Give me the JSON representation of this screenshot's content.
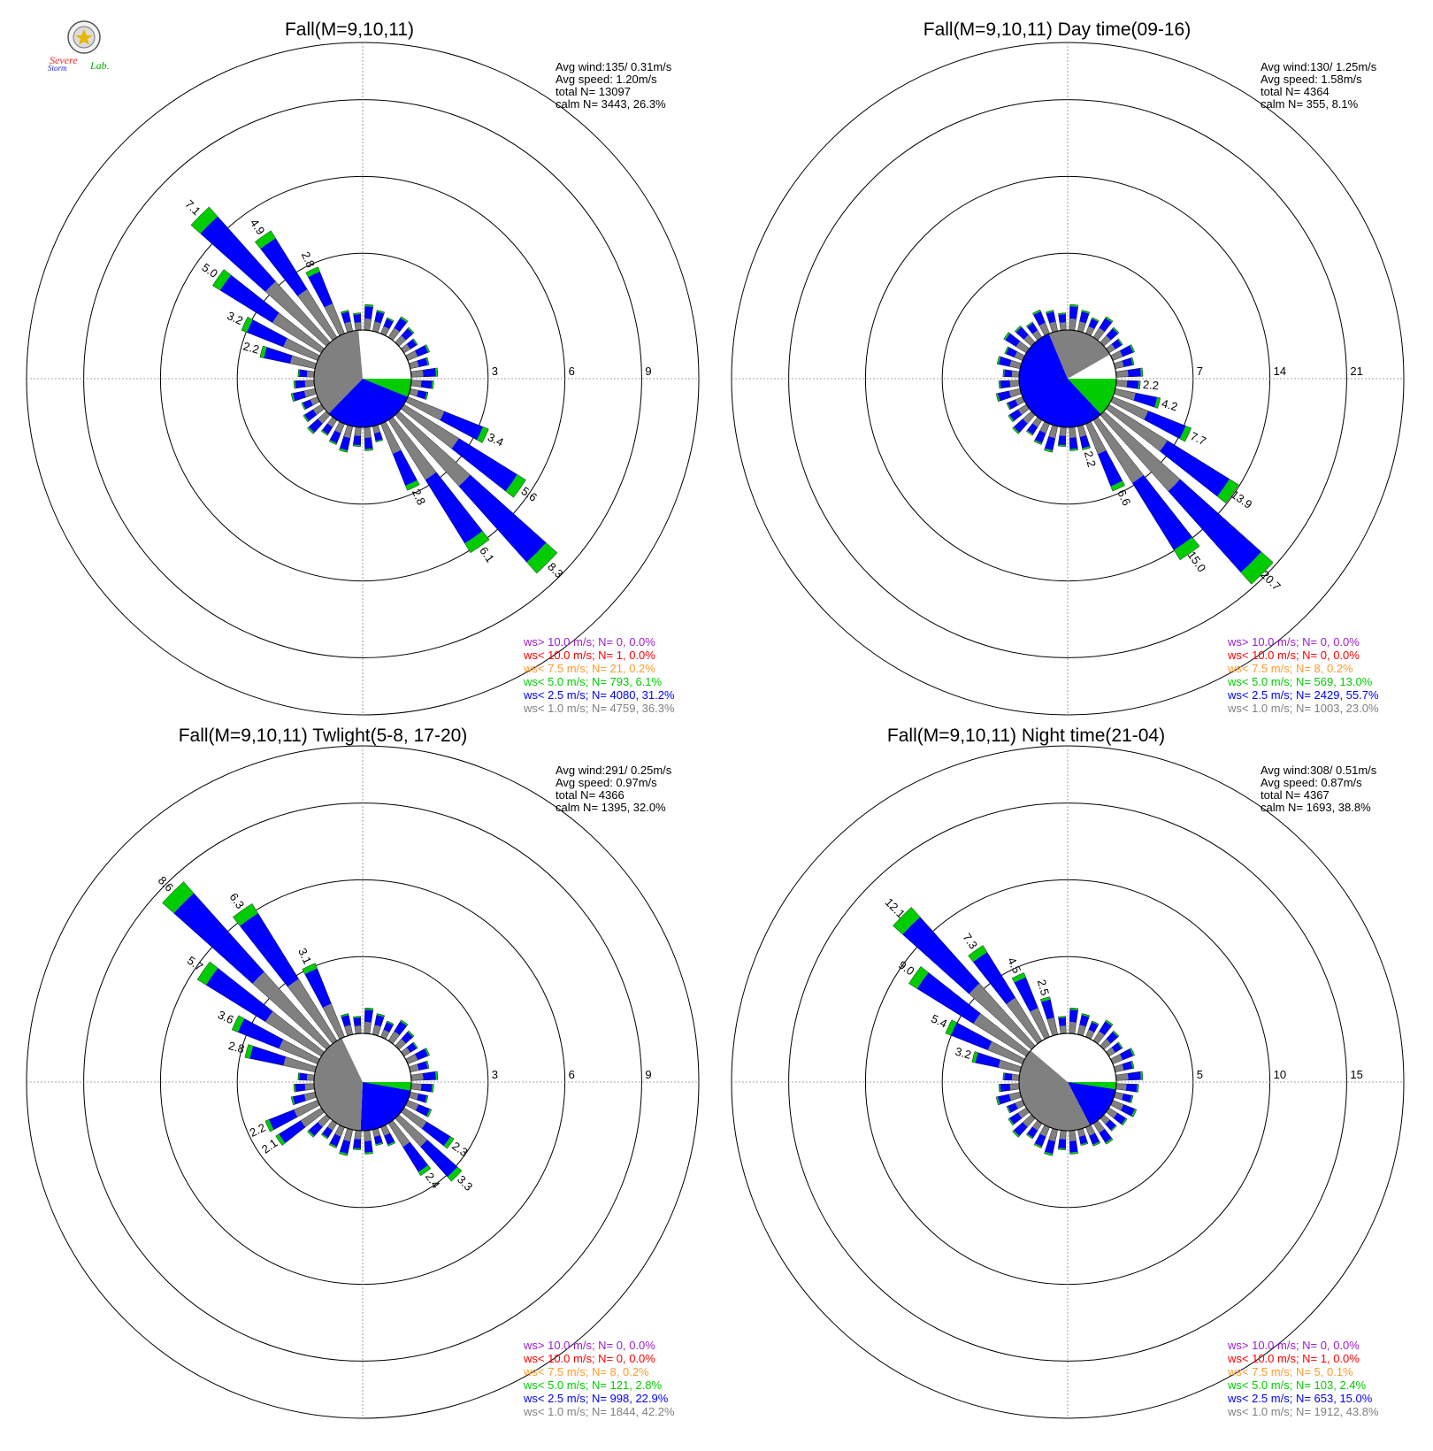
{
  "logo": {
    "text_a": "Severe",
    "text_b": "Storm",
    "text_c": "Lab."
  },
  "colors": {
    "gt10": "#9a1ed0",
    "lt10": "#ff0000",
    "lt75": "#ff9a2e",
    "lt5": "#00cc00",
    "lt25": "#0000ff",
    "lt1": "#808080"
  },
  "chart_data": [
    {
      "type": "polar-bar (wind rose)",
      "title": "Fall(M=9,10,11)",
      "stats": [
        "Avg wind:135/ 0.31m/s",
        "Avg speed: 1.20m/s",
        "total N=      13097",
        "calm N=   3443,  26.3%"
      ],
      "radial_ticks": [
        "3",
        "6",
        "9"
      ],
      "rmax": 9,
      "calm_pie_percent": {
        "ws<1.0": 36.3,
        "ws<2.5": 31.2,
        "ws<5.0": 6.1,
        "ws<7.5": 0.2
      },
      "labeled_bars": [
        {
          "direction_deg": 315,
          "total_percent": 7.1
        },
        {
          "direction_deg": 325,
          "total_percent": 4.9
        },
        {
          "direction_deg": 305,
          "total_percent": 5.0
        },
        {
          "direction_deg": 335,
          "total_percent": 2.8
        },
        {
          "direction_deg": 295,
          "total_percent": 3.2
        },
        {
          "direction_deg": 285,
          "total_percent": 2.2
        },
        {
          "direction_deg": 115,
          "total_percent": 3.4
        },
        {
          "direction_deg": 125,
          "total_percent": 5.6
        },
        {
          "direction_deg": 135,
          "total_percent": 8.3
        },
        {
          "direction_deg": 145,
          "total_percent": 6.1
        },
        {
          "direction_deg": 155,
          "total_percent": 2.8
        }
      ],
      "legend": [
        {
          "label": "ws> 10.0 m/s; N=    0,  0.0%",
          "key": "gt10"
        },
        {
          "label": "ws< 10.0 m/s; N=    1,  0.0%",
          "key": "lt10"
        },
        {
          "label": "ws<  7.5 m/s; N=   21,  0.2%",
          "key": "lt75"
        },
        {
          "label": "ws<  5.0 m/s; N=  793,  6.1%",
          "key": "lt5"
        },
        {
          "label": "ws<  2.5 m/s; N= 4080, 31.2%",
          "key": "lt25"
        },
        {
          "label": "ws<  1.0 m/s; N= 4759, 36.3%",
          "key": "lt1"
        }
      ]
    },
    {
      "type": "polar-bar (wind rose)",
      "title": "Fall(M=9,10,11) Day time(09-16)",
      "stats": [
        "Avg wind:130/ 1.25m/s",
        "Avg speed: 1.58m/s",
        "total N=       4364",
        "calm N=    355,   8.1%"
      ],
      "radial_ticks": [
        "7",
        "14",
        "21"
      ],
      "rmax": 21,
      "calm_pie_percent": {
        "ws<1.0": 23.0,
        "ws<2.5": 55.7,
        "ws<5.0": 13.0,
        "ws<7.5": 0.2
      },
      "labeled_bars": [
        {
          "direction_deg": 95,
          "total_percent": 2.2
        },
        {
          "direction_deg": 105,
          "total_percent": 4.2
        },
        {
          "direction_deg": 115,
          "total_percent": 7.7
        },
        {
          "direction_deg": 125,
          "total_percent": 13.9
        },
        {
          "direction_deg": 135,
          "total_percent": 20.7
        },
        {
          "direction_deg": 145,
          "total_percent": 15.0
        },
        {
          "direction_deg": 155,
          "total_percent": 6.6
        },
        {
          "direction_deg": 165,
          "total_percent": 2.2
        }
      ],
      "legend": [
        {
          "label": "ws> 10.0 m/s; N=    0,  0.0%",
          "key": "gt10"
        },
        {
          "label": "ws< 10.0 m/s; N=    0,  0.0%",
          "key": "lt10"
        },
        {
          "label": "ws<  7.5 m/s; N=    8,  0.2%",
          "key": "lt75"
        },
        {
          "label": "ws<  5.0 m/s; N=  569, 13.0%",
          "key": "lt5"
        },
        {
          "label": "ws<  2.5 m/s; N= 2429, 55.7%",
          "key": "lt25"
        },
        {
          "label": "ws<  1.0 m/s; N= 1003, 23.0%",
          "key": "lt1"
        }
      ]
    },
    {
      "type": "polar-bar (wind rose)",
      "title": "Fall(M=9,10,11) Twlight(5-8, 17-20)",
      "stats": [
        "Avg wind:291/ 0.25m/s",
        "Avg speed: 0.97m/s",
        "total N=       4366",
        "calm N=   1395,  32.0%"
      ],
      "radial_ticks": [
        "3",
        "6",
        "9"
      ],
      "rmax": 9,
      "calm_pie_percent": {
        "ws<1.0": 42.2,
        "ws<2.5": 22.9,
        "ws<5.0": 2.8,
        "ws<7.5": 0.2
      },
      "labeled_bars": [
        {
          "direction_deg": 315,
          "total_percent": 8.6
        },
        {
          "direction_deg": 325,
          "total_percent": 6.3
        },
        {
          "direction_deg": 305,
          "total_percent": 5.7
        },
        {
          "direction_deg": 335,
          "total_percent": 3.1
        },
        {
          "direction_deg": 295,
          "total_percent": 3.6
        },
        {
          "direction_deg": 285,
          "total_percent": 2.8
        },
        {
          "direction_deg": 245,
          "total_percent": 2.2
        },
        {
          "direction_deg": 235,
          "total_percent": 2.1
        },
        {
          "direction_deg": 125,
          "total_percent": 2.3
        },
        {
          "direction_deg": 135,
          "total_percent": 3.3
        },
        {
          "direction_deg": 145,
          "total_percent": 2.4
        }
      ],
      "legend": [
        {
          "label": "ws> 10.0 m/s; N=    0,  0.0%",
          "key": "gt10"
        },
        {
          "label": "ws< 10.0 m/s; N=    0,  0.0%",
          "key": "lt10"
        },
        {
          "label": "ws<  7.5 m/s; N=    8,  0.2%",
          "key": "lt75"
        },
        {
          "label": "ws<  5.0 m/s; N=  121,  2.8%",
          "key": "lt5"
        },
        {
          "label": "ws<  2.5 m/s; N=  998, 22.9%",
          "key": "lt25"
        },
        {
          "label": "ws<  1.0 m/s; N= 1844, 42.2%",
          "key": "lt1"
        }
      ]
    },
    {
      "type": "polar-bar (wind rose)",
      "title": "Fall(M=9,10,11) Night time(21-04)",
      "stats": [
        "Avg wind:308/ 0.51m/s",
        "Avg speed: 0.87m/s",
        "total N=       4367",
        "calm N=   1693,  38.8%"
      ],
      "radial_ticks": [
        "5",
        "10",
        "15"
      ],
      "rmax": 15,
      "calm_pie_percent": {
        "ws<1.0": 43.8,
        "ws<2.5": 15.0,
        "ws<5.0": 2.4,
        "ws<7.5": 0.1
      },
      "labeled_bars": [
        {
          "direction_deg": 315,
          "total_percent": 12.1
        },
        {
          "direction_deg": 325,
          "total_percent": 7.3
        },
        {
          "direction_deg": 305,
          "total_percent": 9.0
        },
        {
          "direction_deg": 335,
          "total_percent": 4.5
        },
        {
          "direction_deg": 345,
          "total_percent": 2.5
        },
        {
          "direction_deg": 295,
          "total_percent": 5.4
        },
        {
          "direction_deg": 285,
          "total_percent": 3.2
        }
      ],
      "legend": [
        {
          "label": "ws> 10.0 m/s; N=    0,  0.0%",
          "key": "gt10"
        },
        {
          "label": "ws< 10.0 m/s; N=    1,  0.0%",
          "key": "lt10"
        },
        {
          "label": "ws<  7.5 m/s; N=    5,  0.1%",
          "key": "lt75"
        },
        {
          "label": "ws<  5.0 m/s; N=  103,  2.4%",
          "key": "lt5"
        },
        {
          "label": "ws<  2.5 m/s; N=  653, 15.0%",
          "key": "lt25"
        },
        {
          "label": "ws<  1.0 m/s; N= 1912, 43.8%",
          "key": "lt1"
        }
      ]
    }
  ]
}
